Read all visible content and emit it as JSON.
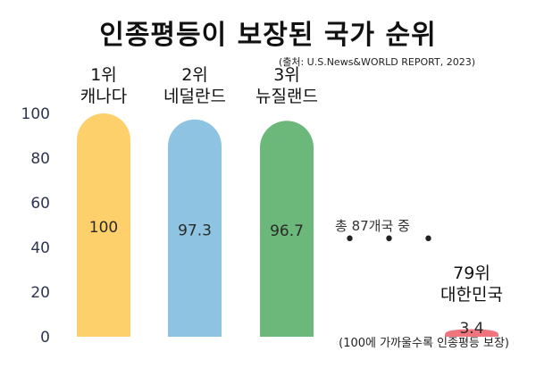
{
  "title": "인종평등이 보장된 국가 순위",
  "source": "(출처: U.S.News&WORLD REPORT, 2023)",
  "total_note": "총 87개국 중",
  "dots": "• • •",
  "footnote": "(100에 가까울수록 인종평등 보장)",
  "chart_data": {
    "type": "bar",
    "categories": [
      "캐나다",
      "네덜란드",
      "뉴질랜드",
      "대한민국"
    ],
    "ranks": [
      "1위",
      "2위",
      "3위",
      "79위"
    ],
    "values": [
      100,
      97.3,
      96.7,
      3.4
    ],
    "value_labels": [
      "100",
      "97.3",
      "96.7",
      "3.4"
    ],
    "colors": [
      "#FDD06B",
      "#8EC4E2",
      "#6CB87A",
      "#F0747E"
    ],
    "yticks": [
      0,
      20,
      40,
      60,
      80,
      100
    ],
    "ylim": [
      0,
      100
    ],
    "grid": false,
    "legend": "none"
  }
}
